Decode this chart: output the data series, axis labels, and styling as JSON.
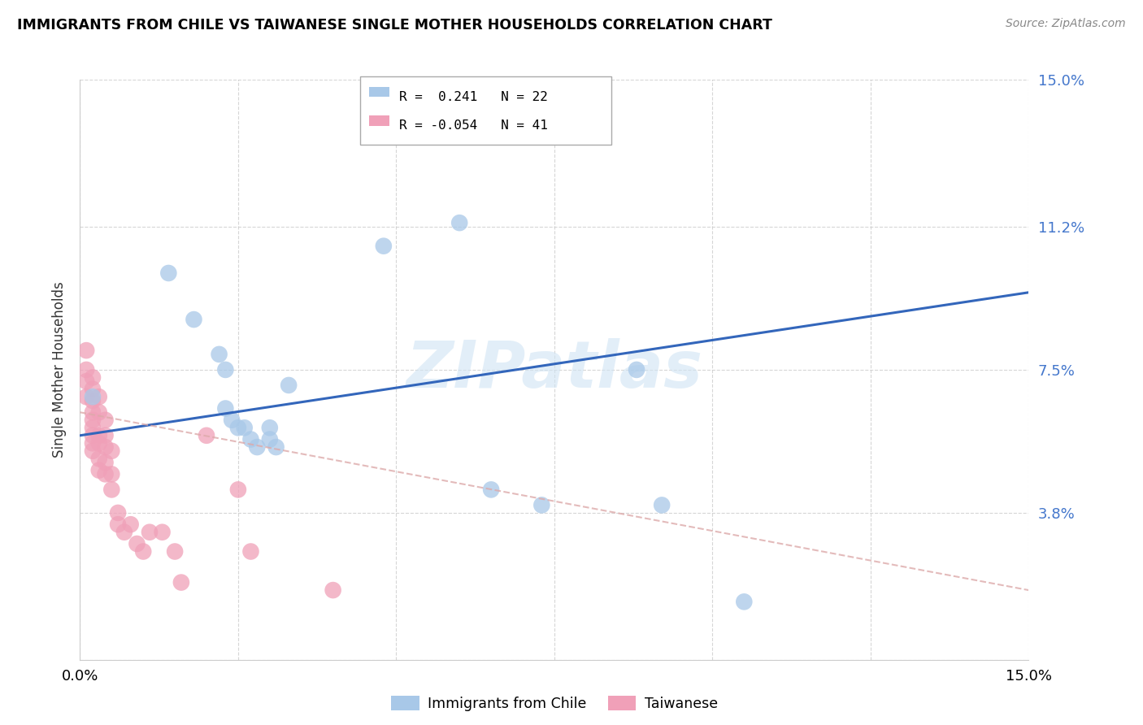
{
  "title": "IMMIGRANTS FROM CHILE VS TAIWANESE SINGLE MOTHER HOUSEHOLDS CORRELATION CHART",
  "source": "Source: ZipAtlas.com",
  "ylabel": "Single Mother Households",
  "xlim": [
    0.0,
    0.15
  ],
  "ylim": [
    0.0,
    0.15
  ],
  "ytick_values": [
    0.0,
    0.038,
    0.075,
    0.112,
    0.15
  ],
  "xtick_values": [
    0.0,
    0.025,
    0.05,
    0.075,
    0.1,
    0.125,
    0.15
  ],
  "blue_color": "#a8c8e8",
  "pink_color": "#f0a0b8",
  "trendline_blue": "#3366bb",
  "trendline_pink": "#ddaaaa",
  "watermark": "ZIPatlas",
  "blue_scatter": [
    [
      0.002,
      0.068
    ],
    [
      0.014,
      0.1
    ],
    [
      0.018,
      0.088
    ],
    [
      0.022,
      0.079
    ],
    [
      0.023,
      0.075
    ],
    [
      0.023,
      0.065
    ],
    [
      0.024,
      0.062
    ],
    [
      0.025,
      0.06
    ],
    [
      0.026,
      0.06
    ],
    [
      0.027,
      0.057
    ],
    [
      0.028,
      0.055
    ],
    [
      0.03,
      0.06
    ],
    [
      0.03,
      0.057
    ],
    [
      0.031,
      0.055
    ],
    [
      0.033,
      0.071
    ],
    [
      0.048,
      0.107
    ],
    [
      0.06,
      0.113
    ],
    [
      0.065,
      0.044
    ],
    [
      0.073,
      0.04
    ],
    [
      0.088,
      0.075
    ],
    [
      0.092,
      0.04
    ],
    [
      0.105,
      0.015
    ]
  ],
  "pink_scatter": [
    [
      0.001,
      0.08
    ],
    [
      0.001,
      0.075
    ],
    [
      0.001,
      0.072
    ],
    [
      0.001,
      0.068
    ],
    [
      0.002,
      0.073
    ],
    [
      0.002,
      0.07
    ],
    [
      0.002,
      0.067
    ],
    [
      0.002,
      0.064
    ],
    [
      0.002,
      0.062
    ],
    [
      0.002,
      0.06
    ],
    [
      0.002,
      0.058
    ],
    [
      0.002,
      0.056
    ],
    [
      0.002,
      0.054
    ],
    [
      0.003,
      0.068
    ],
    [
      0.003,
      0.064
    ],
    [
      0.003,
      0.058
    ],
    [
      0.003,
      0.056
    ],
    [
      0.003,
      0.052
    ],
    [
      0.003,
      0.049
    ],
    [
      0.004,
      0.058
    ],
    [
      0.004,
      0.055
    ],
    [
      0.004,
      0.051
    ],
    [
      0.004,
      0.048
    ],
    [
      0.004,
      0.062
    ],
    [
      0.005,
      0.054
    ],
    [
      0.005,
      0.048
    ],
    [
      0.005,
      0.044
    ],
    [
      0.006,
      0.038
    ],
    [
      0.006,
      0.035
    ],
    [
      0.007,
      0.033
    ],
    [
      0.008,
      0.035
    ],
    [
      0.009,
      0.03
    ],
    [
      0.01,
      0.028
    ],
    [
      0.011,
      0.033
    ],
    [
      0.013,
      0.033
    ],
    [
      0.015,
      0.028
    ],
    [
      0.016,
      0.02
    ],
    [
      0.02,
      0.058
    ],
    [
      0.025,
      0.044
    ],
    [
      0.027,
      0.028
    ],
    [
      0.04,
      0.018
    ]
  ],
  "blue_trend_x": [
    0.0,
    0.15
  ],
  "blue_trend_y": [
    0.058,
    0.095
  ],
  "pink_trend_x": [
    0.0,
    0.15
  ],
  "pink_trend_y": [
    0.064,
    0.018
  ]
}
